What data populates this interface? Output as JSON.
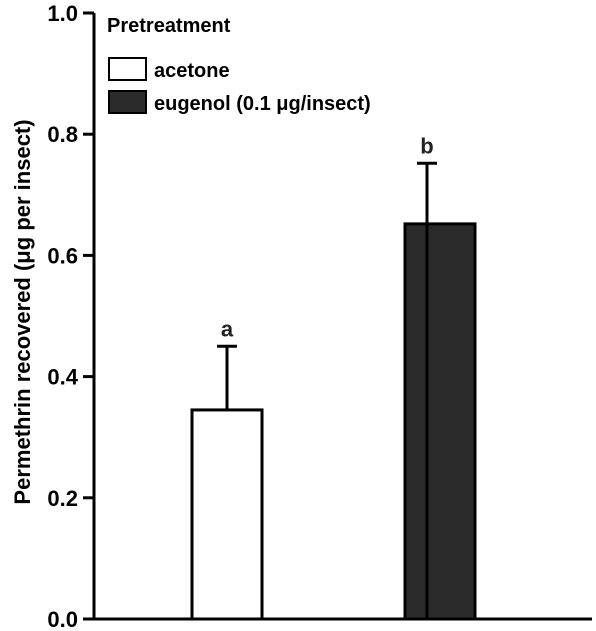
{
  "chart_data": {
    "type": "bar",
    "title": "",
    "xlabel": "",
    "ylabel": "Permethrin recovered (μg per insect)",
    "ylim": [
      0,
      1.0
    ],
    "yticks": [
      0.0,
      0.2,
      0.4,
      0.6,
      0.8,
      1.0
    ],
    "ytick_labels": [
      "0.0",
      "0.2",
      "0.4",
      "0.6",
      "0.8",
      "1.0"
    ],
    "legend_title": "Pretreatment",
    "legend_position": "top-left",
    "series": [
      {
        "name": "acetone",
        "value": 0.345,
        "error": 0.105,
        "significance": "a",
        "color": "#ffffff"
      },
      {
        "name": "eugenol (0.1 μg/insect)",
        "value": 0.652,
        "error": 0.1,
        "significance": "b",
        "color": "#2b2b2b"
      }
    ],
    "grid": false
  }
}
